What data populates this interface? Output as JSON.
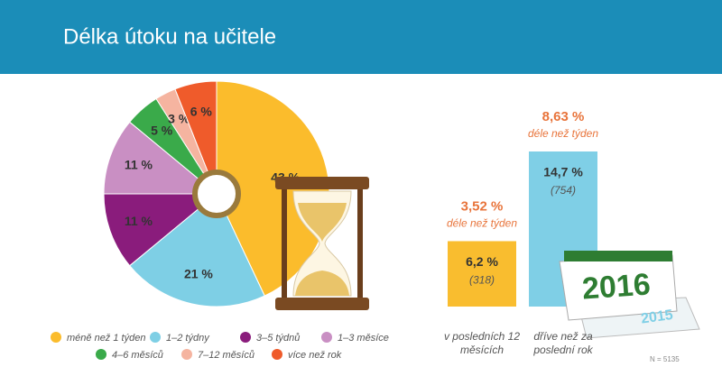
{
  "chart_data": [
    {
      "type": "pie",
      "title": "Délka útoku na učitele",
      "categories": [
        "méně než 1 týden",
        "1–2 týdny",
        "3–5 týdnů",
        "1–3 měsíce",
        "4–6 měsíců",
        "7–12 měsíců",
        "více než rok"
      ],
      "values": [
        43,
        21,
        11,
        11,
        5,
        3,
        6
      ],
      "value_labels": [
        "43 %",
        "21 %",
        "11 %",
        "11 %",
        "5 %",
        "3 %",
        "6 %"
      ],
      "colors": [
        "#fbbc2c",
        "#7ecfe5",
        "#8a1c7c",
        "#c98fc3",
        "#3aaa4a",
        "#f5b4a0",
        "#ef5b2b"
      ]
    },
    {
      "type": "bar",
      "categories": [
        "v posledních 12 měsících",
        "dříve než za poslední rok"
      ],
      "values": [
        6.2,
        14.7
      ],
      "value_labels": [
        "6,2 %",
        "14,7 %"
      ],
      "count_labels": [
        "(318)",
        "(754)"
      ],
      "colors": [
        "#f9bd2f",
        "#7fcfe6"
      ],
      "annotations": [
        {
          "label": "3,52 %",
          "text": "déle než týden"
        },
        {
          "label": "8,63 %",
          "text": "déle než týden"
        }
      ],
      "calendar_labels": [
        "2016",
        "2015"
      ],
      "note": "N = 5135"
    }
  ]
}
